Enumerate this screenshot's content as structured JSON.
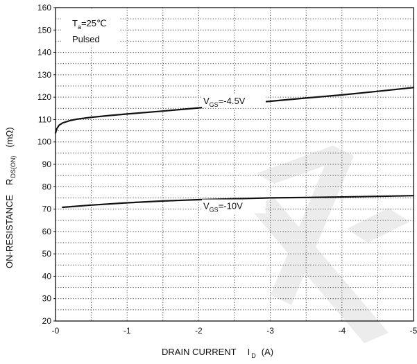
{
  "chart_data": {
    "type": "line",
    "title": "",
    "xlabel": {
      "main": "DRAIN CURRENT",
      "symbol": "I",
      "subscript": "D",
      "unit": "(A)"
    },
    "ylabel": {
      "main": "ON-RESISTANCE",
      "symbol": "R",
      "subscript": "DS(ON)",
      "unit": "(mΩ)"
    },
    "xlim": [
      0,
      -5
    ],
    "ylim": [
      20,
      160
    ],
    "x_ticks": [
      "-0",
      "-1",
      "-2",
      "-3",
      "-4",
      "-5"
    ],
    "y_ticks": [
      "20",
      "30",
      "40",
      "50",
      "60",
      "70",
      "80",
      "90",
      "100",
      "110",
      "120",
      "130",
      "140",
      "150",
      "160"
    ],
    "grid": true,
    "condition_box": {
      "line1_prefix": "T",
      "line1_sub": "a",
      "line1_suffix": "=25℃",
      "line2": "Pulsed"
    },
    "series": [
      {
        "label_prefix": "V",
        "label_sub": "GS",
        "label_suffix": "=-4.5V",
        "label_at": [
          -2.5,
          117
        ],
        "x": [
          0,
          -0.02,
          -0.05,
          -0.1,
          -0.2,
          -0.3,
          -0.5,
          -0.75,
          -1,
          -1.5,
          -2,
          -2.5,
          -3,
          -3.5,
          -4,
          -4.5,
          -5
        ],
        "y": [
          104,
          106,
          107.5,
          108.5,
          109.5,
          110.2,
          111,
          111.8,
          112.5,
          113.8,
          115.2,
          116.7,
          118.2,
          119.6,
          121,
          122.6,
          124.3
        ]
      },
      {
        "label_prefix": "V",
        "label_sub": "GS",
        "label_suffix": "=-10V",
        "label_at": [
          -2.5,
          70
        ],
        "x": [
          -0.1,
          -0.5,
          -1,
          -1.5,
          -2,
          -2.5,
          -3,
          -3.5,
          -4,
          -4.5,
          -5
        ],
        "y": [
          70.8,
          71.8,
          72.8,
          73.6,
          74.2,
          74.6,
          75,
          75.2,
          75.4,
          75.7,
          76
        ]
      }
    ]
  },
  "colors": {
    "line": "#111111",
    "grid": "#444444",
    "frame": "#111111",
    "watermark": "#e8e8e8"
  }
}
